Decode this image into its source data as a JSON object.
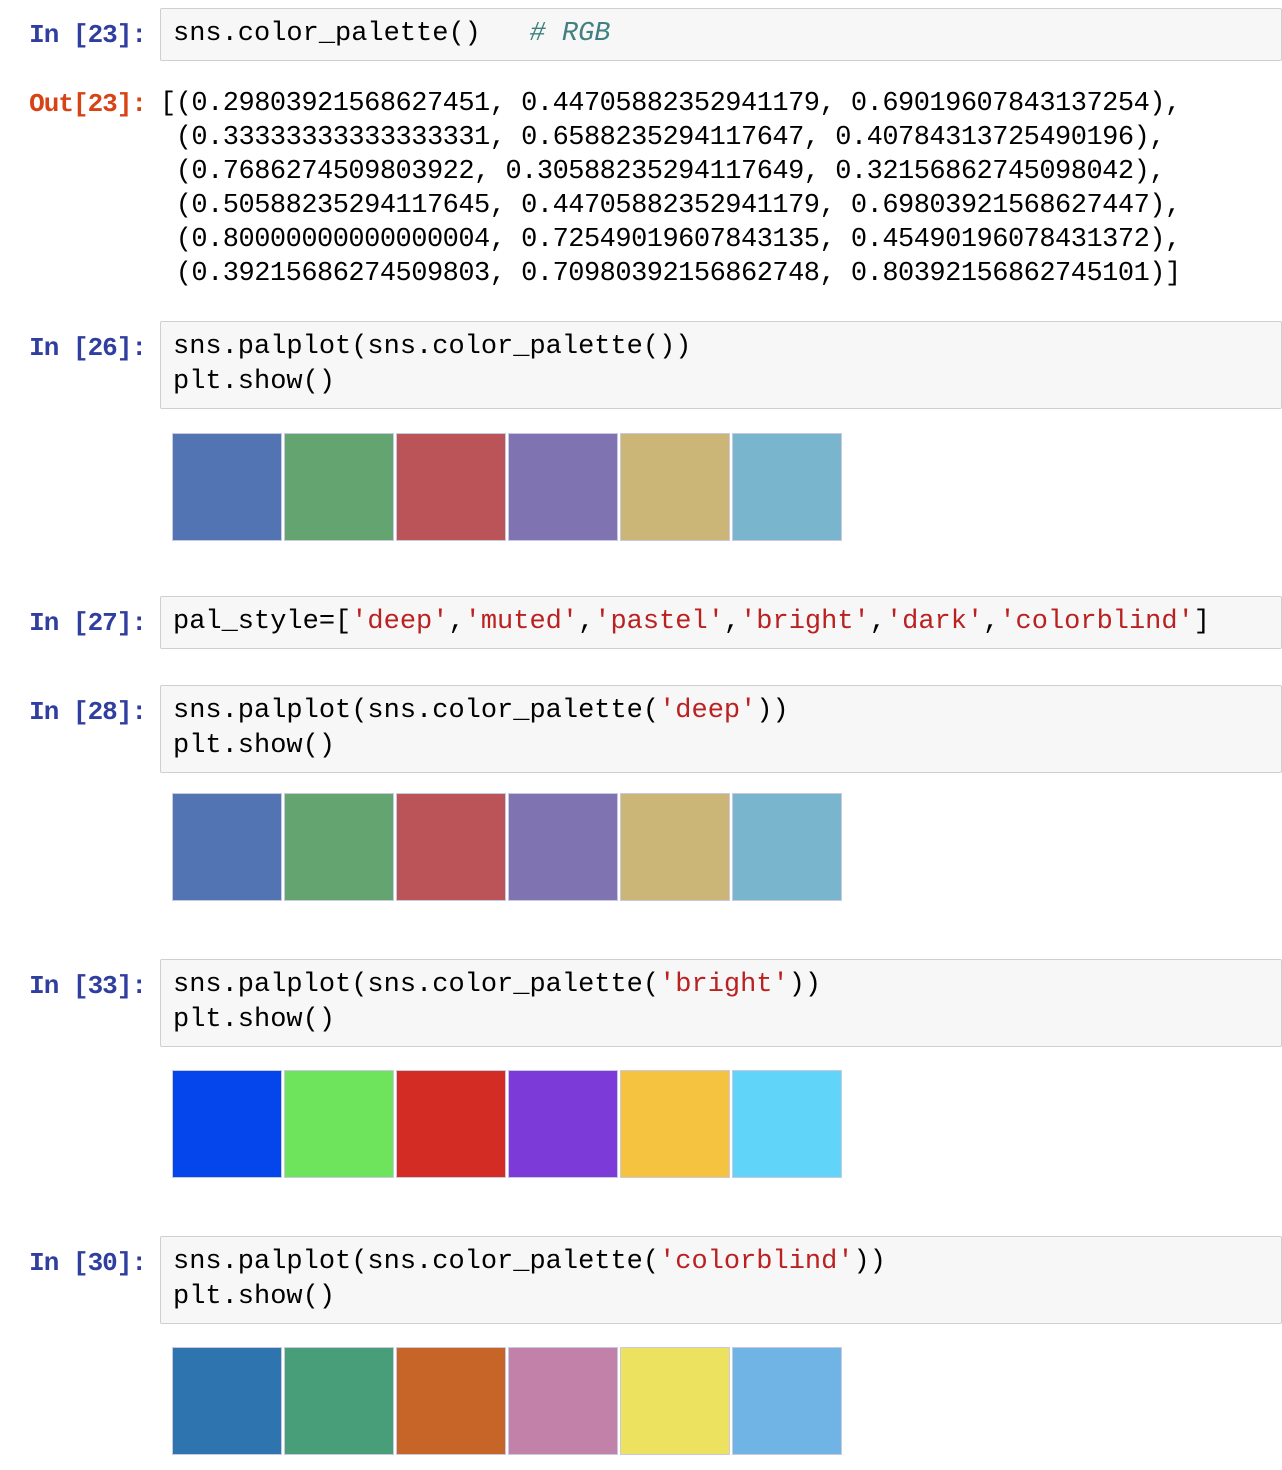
{
  "app": {
    "name": "Jupyter Notebook (seaborn color palettes)"
  },
  "theme": {
    "prompt-in": "#303F9F",
    "prompt-out": "#D84315",
    "code-text": "#000000",
    "string-token": "#BA2121",
    "comment-token": "#408080",
    "cell-bg": "#F7F7F7",
    "cell-border": "#CFCFCF",
    "page-bg": "#FFFFFF",
    "swatch-border": "#C9C9E0"
  },
  "palette_colors": {
    "deep": [
      "#5274B2",
      "#64A470",
      "#BA5458",
      "#7F73B2",
      "#CBB677",
      "#79B6CE"
    ],
    "bright": [
      "#0545EC",
      "#6EE35C",
      "#D32C24",
      "#7C3BD9",
      "#F5C33F",
      "#61D5F9"
    ],
    "colorblind": [
      "#2E74AF",
      "#479E78",
      "#C66527",
      "#C181A8",
      "#ECE25F",
      "#70B3E5"
    ]
  },
  "cells": [
    {
      "kind": "code-input",
      "prompt": "In [23]:",
      "lines": [
        [
          {
            "text": "sns.color_palette()   ",
            "style": "plain"
          },
          {
            "text": "# RGB",
            "style": "comment"
          }
        ]
      ]
    },
    {
      "kind": "text-output",
      "prompt": "Out[23]:",
      "lines": [
        "[(0.29803921568627451, 0.44705882352941179, 0.69019607843137254),",
        " (0.33333333333333331, 0.6588235294117647, 0.40784313725490196),",
        " (0.7686274509803922, 0.30588235294117649, 0.32156862745098042),",
        " (0.50588235294117645, 0.44705882352941179, 0.69803921568627447),",
        " (0.80000000000000004, 0.72549019607843135, 0.45490196078431372),",
        " (0.39215686274509803, 0.70980392156862748, 0.80392156862745101)]"
      ]
    },
    {
      "kind": "code-input",
      "prompt": "In [26]:",
      "lines": [
        [
          {
            "text": "sns.palplot(sns.color_palette())",
            "style": "plain"
          }
        ],
        [
          {
            "text": "plt.show()",
            "style": "plain"
          }
        ]
      ]
    },
    {
      "kind": "palette-output",
      "palette": "deep"
    },
    {
      "kind": "code-input",
      "prompt": "In [27]:",
      "lines": [
        [
          {
            "text": "pal_style=[",
            "style": "plain"
          },
          {
            "text": "'deep'",
            "style": "string"
          },
          {
            "text": ",",
            "style": "plain"
          },
          {
            "text": "'muted'",
            "style": "string"
          },
          {
            "text": ",",
            "style": "plain"
          },
          {
            "text": "'pastel'",
            "style": "string"
          },
          {
            "text": ",",
            "style": "plain"
          },
          {
            "text": "'bright'",
            "style": "string"
          },
          {
            "text": ",",
            "style": "plain"
          },
          {
            "text": "'dark'",
            "style": "string"
          },
          {
            "text": ",",
            "style": "plain"
          },
          {
            "text": "'colorblind'",
            "style": "string"
          },
          {
            "text": "]",
            "style": "plain"
          }
        ]
      ]
    },
    {
      "kind": "code-input",
      "prompt": "In [28]:",
      "lines": [
        [
          {
            "text": "sns.palplot(sns.color_palette(",
            "style": "plain"
          },
          {
            "text": "'deep'",
            "style": "string"
          },
          {
            "text": "))",
            "style": "plain"
          }
        ],
        [
          {
            "text": "plt.show()",
            "style": "plain"
          }
        ]
      ]
    },
    {
      "kind": "palette-output",
      "palette": "deep"
    },
    {
      "kind": "code-input",
      "prompt": "In [33]:",
      "lines": [
        [
          {
            "text": "sns.palplot(sns.color_palette(",
            "style": "plain"
          },
          {
            "text": "'bright'",
            "style": "string"
          },
          {
            "text": "))",
            "style": "plain"
          }
        ],
        [
          {
            "text": "plt.show()",
            "style": "plain"
          }
        ]
      ]
    },
    {
      "kind": "palette-output",
      "palette": "bright"
    },
    {
      "kind": "code-input",
      "prompt": "In [30]:",
      "lines": [
        [
          {
            "text": "sns.palplot(sns.color_palette(",
            "style": "plain"
          },
          {
            "text": "'colorblind'",
            "style": "string"
          },
          {
            "text": "))",
            "style": "plain"
          }
        ],
        [
          {
            "text": "plt.show()",
            "style": "plain"
          }
        ]
      ]
    },
    {
      "kind": "palette-output",
      "palette": "colorblind"
    }
  ]
}
